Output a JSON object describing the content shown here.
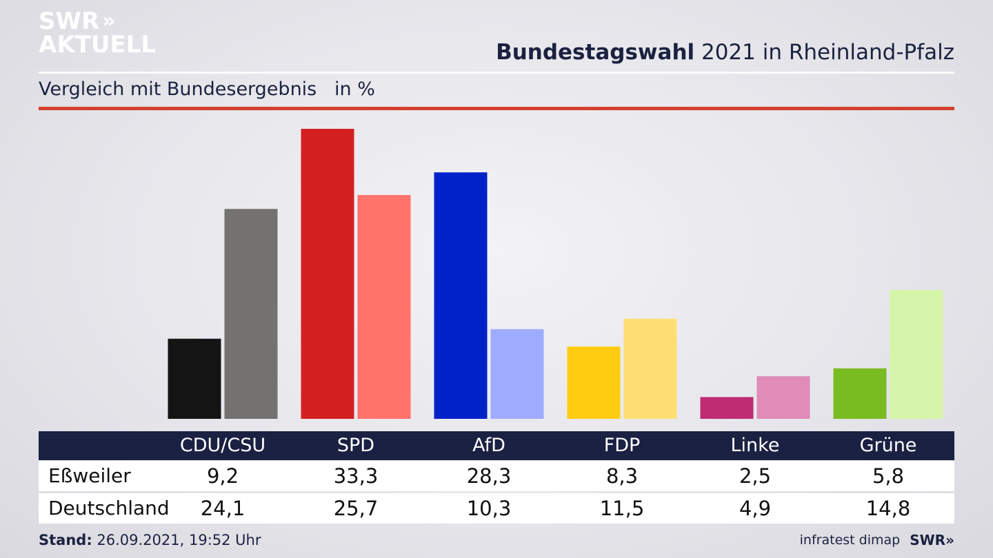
{
  "logo": {
    "line1": "SWR",
    "arrows": "»",
    "line2": "AKTUELL"
  },
  "header": {
    "title_bold": "Bundestagswahl",
    "title_rest": " 2021 in Rheinland-Pfalz",
    "subtitle": "Vergleich mit Bundesergebnis   in %"
  },
  "chart_data": {
    "type": "bar",
    "categories": [
      "CDU/CSU",
      "SPD",
      "AfD",
      "FDP",
      "Linke",
      "Grüne"
    ],
    "series": [
      {
        "name": "Eßweiler",
        "values": [
          9.2,
          33.3,
          28.3,
          8.3,
          2.5,
          5.8
        ],
        "colors": [
          "#141414",
          "#d42020",
          "#0022c8",
          "#ffcc11",
          "#be2c74",
          "#78bc22"
        ]
      },
      {
        "name": "Deutschland",
        "values": [
          24.1,
          25.7,
          10.3,
          11.5,
          4.9,
          14.8
        ],
        "colors": [
          "#737271",
          "#ff736b",
          "#9eacff",
          "#ffdf73",
          "#e08bb8",
          "#d6f5aa"
        ]
      }
    ],
    "ylim": [
      0,
      33.3
    ]
  },
  "table": {
    "rows": [
      {
        "label": "Eßweiler",
        "values": [
          "9,2",
          "33,3",
          "28,3",
          "8,3",
          "2,5",
          "5,8"
        ]
      },
      {
        "label": "Deutschland",
        "values": [
          "24,1",
          "25,7",
          "10,3",
          "11,5",
          "4,9",
          "14,8"
        ]
      }
    ]
  },
  "footer": {
    "stand_label": "Stand:",
    "stand_value": " 26.09.2021, 19:52 Uhr",
    "source": "infratest dimap",
    "brand": "SWR",
    "brand_arrows": "»"
  }
}
